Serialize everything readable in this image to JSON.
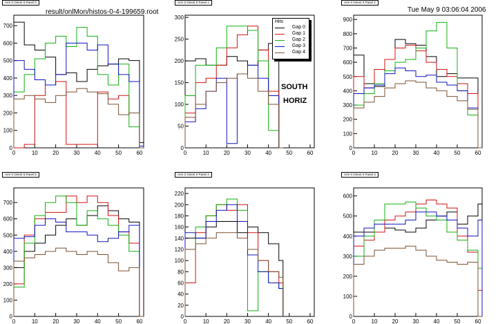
{
  "header": {
    "file_path": "result/onlMon/histos-0-4-199659.root",
    "timestamp": "Tue May  9 03:06:04 2006"
  },
  "labels": {
    "side": "SOUTH",
    "orientation": "HORIZ"
  },
  "legend": {
    "title": "Hits",
    "entries": [
      "Gap 0",
      "Gap 1",
      "Gap 2",
      "Gap 3",
      "Gap 4"
    ]
  },
  "colors": {
    "gap0": "#000000",
    "gap1": "#d01010",
    "gap2": "#10b010",
    "gap3": "#1010c0",
    "gap4": "#7a5030",
    "axis": "#000000"
  },
  "chart_data": [
    {
      "type": "line",
      "title": "Arm 0 Orient 0 Panel 0",
      "x": [
        0,
        5,
        10,
        15,
        20,
        25,
        30,
        35,
        40,
        45,
        50,
        55,
        60
      ],
      "xlim": [
        0,
        62
      ],
      "ylim": [
        0,
        760
      ],
      "xticks": [
        0,
        10,
        20,
        30,
        40,
        50,
        60
      ],
      "yticks": [
        0,
        100,
        200,
        300,
        400,
        500,
        600,
        700
      ],
      "series": [
        {
          "name": "Gap 0",
          "values": [
            720,
            590,
            560,
            520,
            420,
            430,
            380,
            450,
            470,
            480,
            510,
            500,
            30
          ]
        },
        {
          "name": "Gap 1",
          "values": [
            0,
            20,
            300,
            360,
            380,
            20,
            20,
            20,
            320,
            280,
            300,
            200,
            0
          ]
        },
        {
          "name": "Gap 2",
          "values": [
            320,
            420,
            510,
            600,
            640,
            580,
            690,
            640,
            420,
            360,
            480,
            120,
            0
          ]
        },
        {
          "name": "Gap 3",
          "values": [
            500,
            450,
            390,
            360,
            420,
            600,
            600,
            560,
            590,
            480,
            420,
            380,
            10
          ]
        },
        {
          "name": "Gap 4",
          "values": [
            280,
            300,
            280,
            260,
            300,
            320,
            340,
            320,
            310,
            250,
            190,
            200,
            0
          ]
        }
      ]
    },
    {
      "type": "line",
      "title": "Arm 0 Orient 0 Panel 1",
      "x": [
        0,
        5,
        10,
        15,
        20,
        25,
        30,
        35,
        40,
        45
      ],
      "xlim": [
        0,
        62
      ],
      "ylim": [
        0,
        305
      ],
      "xticks": [
        0,
        10,
        20,
        30,
        40,
        50,
        60
      ],
      "yticks": [
        0,
        50,
        100,
        150,
        200,
        250,
        300
      ],
      "series": [
        {
          "name": "Gap 0",
          "values": [
            200,
            205,
            190,
            190,
            210,
            200,
            190,
            225,
            240,
            0
          ]
        },
        {
          "name": "Gap 1",
          "values": [
            80,
            150,
            160,
            190,
            230,
            260,
            280,
            225,
            130,
            0
          ]
        },
        {
          "name": "Gap 2",
          "values": [
            120,
            190,
            190,
            230,
            280,
            280,
            270,
            200,
            40,
            0
          ]
        },
        {
          "name": "Gap 3",
          "values": [
            60,
            90,
            130,
            160,
            10,
            170,
            190,
            160,
            120,
            0
          ]
        },
        {
          "name": "Gap 4",
          "values": [
            70,
            100,
            130,
            150,
            160,
            170,
            160,
            130,
            100,
            0
          ]
        }
      ]
    },
    {
      "type": "line",
      "title": "Arm 0 Orient 0 Panel 2",
      "x": [
        0,
        5,
        10,
        15,
        20,
        25,
        30,
        35,
        40,
        45,
        50,
        55,
        60
      ],
      "xlim": [
        0,
        62
      ],
      "ylim": [
        0,
        930
      ],
      "xticks": [
        0,
        10,
        20,
        30,
        40,
        50,
        60
      ],
      "yticks": [
        0,
        100,
        200,
        300,
        400,
        500,
        600,
        700,
        800,
        900
      ],
      "series": [
        {
          "name": "Gap 0",
          "values": [
            650,
            450,
            430,
            620,
            760,
            730,
            720,
            640,
            500,
            520,
            490,
            490,
            0
          ]
        },
        {
          "name": "Gap 1",
          "values": [
            500,
            420,
            550,
            620,
            700,
            720,
            680,
            600,
            550,
            500,
            450,
            380,
            0
          ]
        },
        {
          "name": "Gap 2",
          "values": [
            300,
            380,
            450,
            540,
            600,
            620,
            700,
            820,
            880,
            700,
            400,
            230,
            0
          ]
        },
        {
          "name": "Gap 3",
          "values": [
            380,
            420,
            440,
            520,
            560,
            540,
            500,
            510,
            460,
            440,
            400,
            280,
            0
          ]
        },
        {
          "name": "Gap 4",
          "values": [
            280,
            320,
            360,
            420,
            450,
            470,
            460,
            420,
            400,
            360,
            330,
            270,
            0
          ]
        }
      ]
    },
    {
      "type": "line",
      "title": "Arm 0 Orient 0 Panel 5",
      "x": [
        0,
        5,
        10,
        15,
        20,
        25,
        30,
        35,
        40,
        45,
        50,
        55,
        60
      ],
      "xlim": [
        0,
        62
      ],
      "ylim": [
        0,
        790
      ],
      "xticks": [
        0,
        10,
        20,
        30,
        40,
        50,
        60
      ],
      "yticks": [
        0,
        100,
        200,
        300,
        400,
        500,
        600,
        700
      ],
      "series": [
        {
          "name": "Gap 0",
          "values": [
            300,
            400,
            450,
            500,
            560,
            600,
            560,
            620,
            680,
            650,
            600,
            580,
            0
          ]
        },
        {
          "name": "Gap 1",
          "values": [
            200,
            500,
            600,
            640,
            640,
            740,
            700,
            740,
            700,
            620,
            520,
            450,
            0
          ]
        },
        {
          "name": "Gap 2",
          "values": [
            180,
            450,
            620,
            700,
            740,
            700,
            560,
            650,
            600,
            560,
            500,
            400,
            0
          ]
        },
        {
          "name": "Gap 3",
          "values": [
            480,
            490,
            560,
            600,
            580,
            520,
            520,
            500,
            460,
            480,
            520,
            560,
            0
          ]
        },
        {
          "name": "Gap 4",
          "values": [
            340,
            360,
            380,
            400,
            420,
            400,
            380,
            400,
            380,
            330,
            280,
            300,
            0
          ]
        }
      ]
    },
    {
      "type": "line",
      "title": "Arm 0 Orient 0 Panel 4",
      "x": [
        0,
        5,
        10,
        15,
        20,
        25,
        30,
        35,
        40,
        45
      ],
      "xlim": [
        0,
        62
      ],
      "ylim": [
        0,
        230
      ],
      "xticks": [
        0,
        10,
        20,
        30,
        40,
        50,
        60
      ],
      "yticks": [
        0,
        20,
        40,
        60,
        80,
        100,
        120,
        140,
        160,
        180,
        200,
        220
      ],
      "series": [
        {
          "name": "Gap 0",
          "values": [
            140,
            140,
            160,
            170,
            170,
            150,
            160,
            150,
            130,
            100
          ]
        },
        {
          "name": "Gap 1",
          "values": [
            60,
            150,
            180,
            200,
            190,
            200,
            150,
            100,
            80,
            60
          ]
        },
        {
          "name": "Gap 2",
          "values": [
            120,
            160,
            180,
            200,
            210,
            190,
            10,
            80,
            60,
            50
          ]
        },
        {
          "name": "Gap 3",
          "values": [
            150,
            140,
            170,
            190,
            200,
            170,
            110,
            80,
            60,
            50
          ]
        },
        {
          "name": "Gap 4",
          "values": [
            120,
            130,
            140,
            150,
            150,
            140,
            120,
            100,
            80,
            70
          ]
        }
      ]
    },
    {
      "type": "line",
      "title": "Arm 0 Orient 0 Panel 3",
      "x": [
        0,
        5,
        10,
        15,
        20,
        25,
        30,
        35,
        40,
        45,
        50,
        55,
        60
      ],
      "xlim": [
        0,
        62
      ],
      "ylim": [
        0,
        640
      ],
      "xticks": [
        0,
        10,
        20,
        30,
        40,
        50,
        60
      ],
      "yticks": [
        0,
        100,
        200,
        300,
        400,
        500,
        600
      ],
      "series": [
        {
          "name": "Gap 0",
          "values": [
            420,
            420,
            420,
            440,
            430,
            420,
            440,
            480,
            500,
            520,
            460,
            500,
            560
          ]
        },
        {
          "name": "Gap 1",
          "values": [
            350,
            380,
            420,
            480,
            500,
            520,
            560,
            580,
            560,
            540,
            400,
            320,
            130
          ]
        },
        {
          "name": "Gap 2",
          "values": [
            300,
            400,
            480,
            560,
            560,
            570,
            540,
            500,
            480,
            420,
            380,
            330,
            240
          ]
        },
        {
          "name": "Gap 3",
          "values": [
            400,
            440,
            460,
            460,
            460,
            480,
            520,
            520,
            500,
            480,
            440,
            400,
            480
          ]
        },
        {
          "name": "Gap 4",
          "values": [
            260,
            300,
            330,
            340,
            340,
            350,
            330,
            300,
            280,
            270,
            260,
            270,
            0
          ]
        }
      ]
    }
  ]
}
